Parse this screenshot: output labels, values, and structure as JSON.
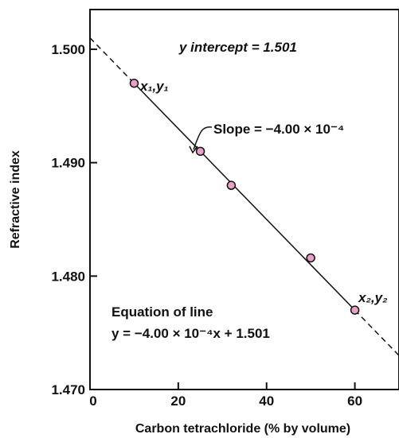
{
  "chart_data": {
    "type": "scatter",
    "xlabel": "Carbon tetrachloride (% by volume)",
    "ylabel": "Refractive index",
    "xlim": [
      0,
      70
    ],
    "ylim": [
      1.47,
      1.5035
    ],
    "x_ticks": [
      0,
      20,
      40,
      60
    ],
    "x_tick_labels": [
      "0",
      "20",
      "40",
      "60"
    ],
    "y_ticks": [
      1.47,
      1.48,
      1.49,
      1.5
    ],
    "y_tick_labels": [
      "1.470",
      "1.480",
      "1.490",
      "1.500"
    ],
    "grid": false,
    "points": [
      {
        "x": 10,
        "y": 1.497
      },
      {
        "x": 25,
        "y": 1.491
      },
      {
        "x": 32,
        "y": 1.488
      },
      {
        "x": 50,
        "y": 1.4816
      },
      {
        "x": 60,
        "y": 1.477
      }
    ],
    "fit_line": {
      "slope": -0.0004,
      "intercept": 1.501
    },
    "point_color": "#e8a0c8",
    "annotations": {
      "y_intercept": "y intercept = 1.501",
      "slope": "Slope = −4.00 × 10⁻⁴",
      "p1": "x₁,y₁",
      "p2": "x₂,y₂",
      "equation_title": "Equation of line",
      "equation": "y = −4.00 × 10⁻⁴x + 1.501"
    }
  }
}
